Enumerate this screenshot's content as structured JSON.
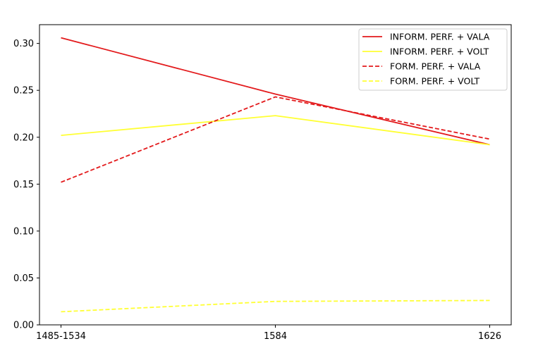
{
  "chart_data": {
    "type": "line",
    "categories": [
      "1485-1534",
      "1584",
      "1626"
    ],
    "ylim": [
      0.0,
      0.32
    ],
    "yticks": [
      "0.00",
      "0.05",
      "0.10",
      "0.15",
      "0.20",
      "0.25",
      "0.30"
    ],
    "grid": false,
    "legend_position": "top-right",
    "series": [
      {
        "name": "INFORM. PERF. + VALA",
        "values": [
          0.306,
          0.246,
          0.192
        ],
        "color": "#e31a1c",
        "style": "solid"
      },
      {
        "name": "INFORM. PERF. + VOLT",
        "values": [
          0.202,
          0.223,
          0.192
        ],
        "color": "#ffff33",
        "style": "solid"
      },
      {
        "name": "FORM. PERF. + VALA",
        "values": [
          0.152,
          0.243,
          0.198
        ],
        "color": "#e31a1c",
        "style": "dashed"
      },
      {
        "name": "FORM. PERF. + VOLT",
        "values": [
          0.014,
          0.025,
          0.026
        ],
        "color": "#ffff33",
        "style": "dashed"
      }
    ]
  }
}
